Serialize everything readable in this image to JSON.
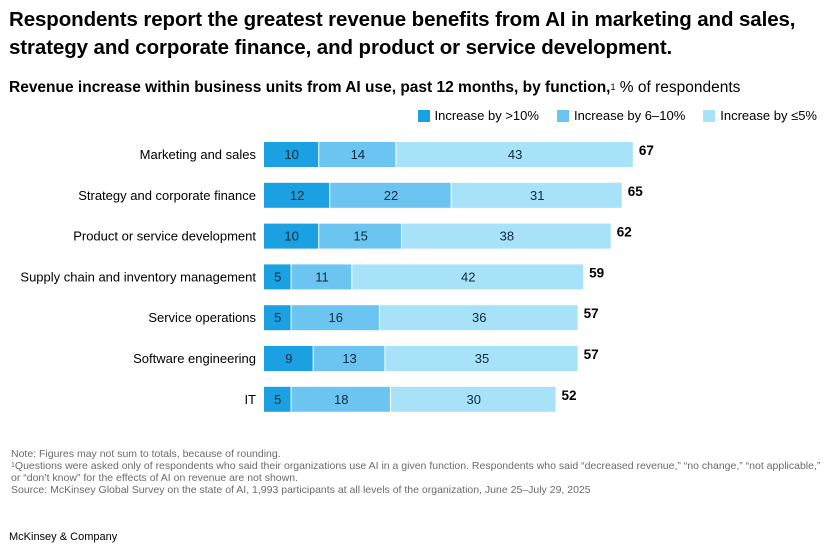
{
  "headline": "Respondents report the greatest revenue benefits from AI in marketing and sales, strategy and corporate finance, and product or service development.",
  "subtitle": {
    "bold": "Revenue increase within business units from AI use, past 12 months, by function,",
    "footnote_mark": "1",
    "rest": " % of respondents"
  },
  "colors": {
    "gt10": "#1ba1e2",
    "6to10": "#6cc4f1",
    "le5": "#a8e2f9"
  },
  "chart_data": {
    "type": "bar",
    "orientation": "horizontal",
    "stacked": true,
    "categories": [
      "Marketing and sales",
      "Strategy and corporate finance",
      "Product or service development",
      "Supply chain and inventory management",
      "Service operations",
      "Software engineering",
      "IT"
    ],
    "series": [
      {
        "name": "Increase by >10%",
        "values": [
          10,
          12,
          10,
          5,
          5,
          9,
          5
        ]
      },
      {
        "name": "Increase by 6–10%",
        "values": [
          14,
          22,
          15,
          11,
          16,
          13,
          18
        ]
      },
      {
        "name": "Increase by ≤5%",
        "values": [
          43,
          31,
          38,
          42,
          36,
          35,
          30
        ]
      }
    ],
    "totals": [
      67,
      65,
      62,
      59,
      57,
      57,
      52
    ],
    "xlim": [
      0,
      67
    ],
    "unit": "% of respondents"
  },
  "notes": {
    "note": "Note: Figures may not sum to totals, because of rounding.",
    "fn1_mark": "1",
    "fn1": "Questions were asked only of respondents who said their organizations use AI in a given function. Respondents who said “decreased revenue,” “no change,” “not applicable,” or “don’t know” for the effects of AI on revenue are not shown.",
    "source": "Source: McKinsey Global Survey on the state of AI, 1,993 participants at all levels of the organization, June 25–July 29, 2025"
  },
  "footer": "McKinsey & Company"
}
